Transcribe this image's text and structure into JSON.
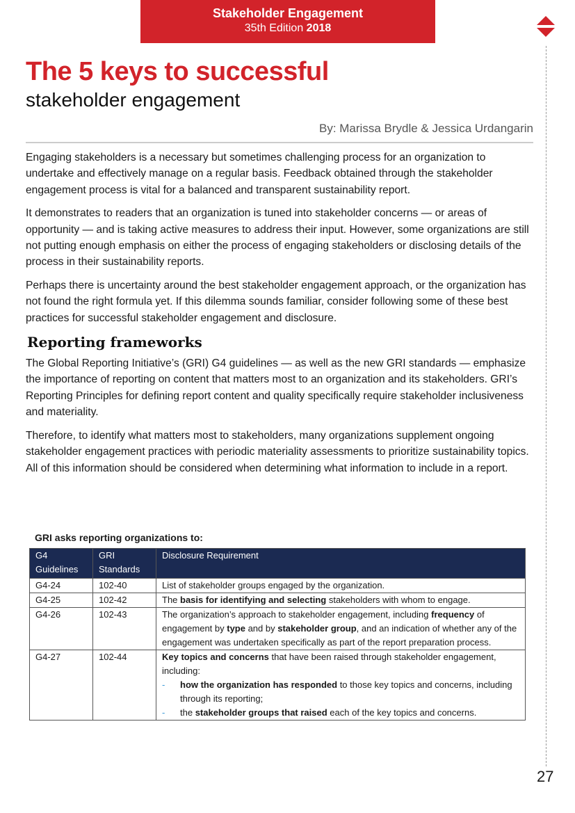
{
  "header": {
    "line1": "Stakeholder Engagement",
    "edition": "35th Edition ",
    "year": "2018"
  },
  "brand_color": "#d2232a",
  "title": "The 5 keys to successful",
  "subtitle": "stakeholder engagement",
  "byline": "By: Marissa Brydle & Jessica Urdangarin",
  "paragraphs": [
    "Engaging stakeholders is a necessary but sometimes challenging process for an organization to undertake and effectively manage on a regular basis. Feedback obtained through the stakeholder engagement process is vital for a balanced and transparent sustainability report.",
    "It demonstrates to readers that an organization is tuned into stakeholder concerns — or areas of opportunity — and is taking active measures to address their input. However, some organizations are still not putting enough emphasis on either the process of engaging stakeholders or disclosing details of the process in their sustainability reports.",
    "Perhaps there is uncertainty around the best stakeholder engagement approach, or the organization has not found the right formula yet. If this dilemma sounds familiar, consider following some of these best practices for successful stakeholder engagement and disclosure."
  ],
  "section_heading": "Reporting frameworks",
  "section_paragraphs": [
    "The Global Reporting Initiative’s (GRI) G4 guidelines — as well as the new GRI standards — emphasize the importance of reporting on content that matters most to an organization and its stakeholders. GRI’s Reporting Principles for defining report content and quality specifically require stakeholder inclusiveness and materiality.",
    "Therefore, to identify what matters most to stakeholders, many organizations supplement ongoing stakeholder engagement practices with periodic materiality assessments to prioritize sustainability topics. All of this information should be considered when determining what information to include in a report."
  ],
  "table": {
    "caption": "GRI asks reporting organizations to:",
    "header_color": "#1b2a52",
    "headers": [
      "G4 Guidelines",
      "GRI Standards",
      "Disclosure Requirement"
    ],
    "rows": [
      {
        "g4": "G4-24",
        "gri": "102-40",
        "req": [
          "List of stakeholder groups engaged by the organization."
        ]
      },
      {
        "g4": "G4-25",
        "gri": "102-42",
        "req": [
          "The ",
          "basis for identifying and selecting",
          " stakeholders with whom to engage."
        ]
      },
      {
        "g4": "G4-26",
        "gri": "102-43",
        "req": [
          "The organization’s approach to stakeholder engagement, including ",
          "frequency",
          " of engagement by ",
          "type",
          " and by ",
          "stakeholder group",
          ", and an indication of whether any of the engagement was undertaken specifically as part of the report preparation process."
        ]
      },
      {
        "g4": "G4-27",
        "gri": "102-44",
        "req": [
          "Key topics and concerns",
          " that have been raised through stakeholder engagement, including:"
        ],
        "bullets": [
          [
            "how the organization has responded",
            " to those key topics and concerns, including through its reporting;"
          ],
          [
            "the ",
            "stakeholder groups that raised",
            " each of the key topics and concerns."
          ]
        ],
        "bullet_marker": "-"
      }
    ]
  },
  "page_number": "27",
  "nav_icon": "up-down-diamond-icon"
}
